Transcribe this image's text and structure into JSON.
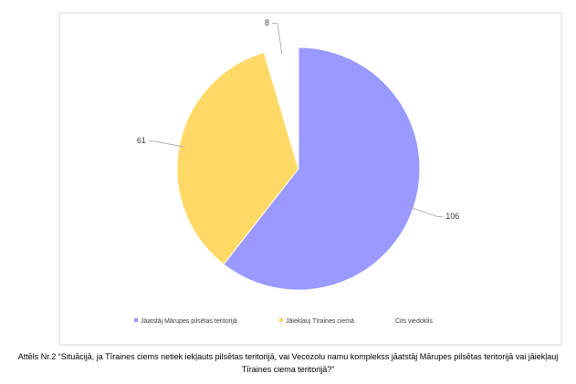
{
  "chart_data": {
    "type": "pie",
    "categories": [
      "Jāatstāj Mārupes pilsētas teritorijā",
      "Jāiekļauj Tīraines ciemā",
      "Cits viedoklis"
    ],
    "values": [
      106,
      61,
      8
    ],
    "colors": [
      "#9999ff",
      "#ffd966",
      "#ffffff"
    ],
    "legend": "bottom"
  },
  "caption": "Attēls Nr.2 “Situācijā, ja Tīraines ciems netiek iekļauts pilsētas teritorijā, vai Vecozolu namu komplekss jāatstāj Mārupes pilsētas teritorijā vai jāiekļauj Tīraines ciema teritorijā?”"
}
